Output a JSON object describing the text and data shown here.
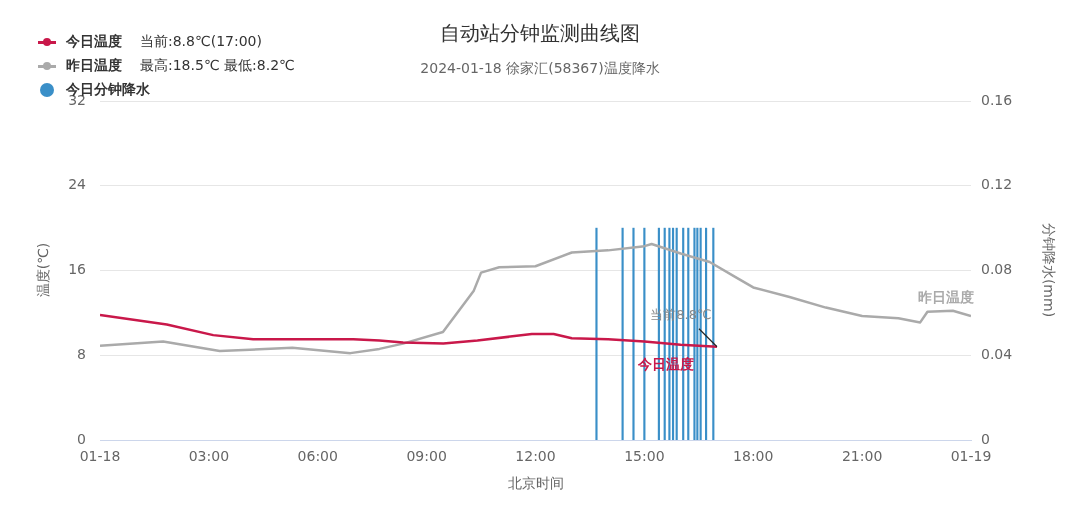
{
  "chart_data": {
    "type": "line",
    "title": "自动站分钟监测曲线图",
    "subtitle": "2024-01-18 徐家汇(58367)温度降水",
    "xlabel": "北京时间",
    "ylabel": "温度(℃)",
    "y2label": "分钟降水(mm)",
    "xlim": [
      0,
      24
    ],
    "xticks": [
      {
        "value": 0,
        "label": "01-18"
      },
      {
        "value": 3,
        "label": "03:00"
      },
      {
        "value": 6,
        "label": "06:00"
      },
      {
        "value": 9,
        "label": "09:00"
      },
      {
        "value": 12,
        "label": "12:00"
      },
      {
        "value": 15,
        "label": "15:00"
      },
      {
        "value": 18,
        "label": "18:00"
      },
      {
        "value": 21,
        "label": "21:00"
      },
      {
        "value": 24,
        "label": "01-19"
      }
    ],
    "ylim": [
      0,
      32
    ],
    "yticks": [
      0,
      8,
      16,
      24,
      32
    ],
    "y2lim": [
      0,
      0.16
    ],
    "y2ticks": [
      0,
      0.04,
      0.08,
      0.12,
      0.16
    ],
    "grid": "y",
    "legend": "top left",
    "annotations": [
      "当前:8.8℃(17:00)",
      "最高:18.5℃ 最低:8.2℃",
      {
        "text": "当前8.8℃",
        "x": 17,
        "y": 8.8
      }
    ],
    "series": [
      {
        "name": "今日温度",
        "color": "#c9184a",
        "x": [
          0,
          1.84,
          3.12,
          4.22,
          6.98,
          7.7,
          8.35,
          9.46,
          10.4,
          11.9,
          12.5,
          13,
          14,
          15,
          16,
          17
        ],
        "values": [
          11.8,
          10.9,
          9.9,
          9.5,
          9.5,
          9.4,
          9.2,
          9.1,
          9.4,
          10,
          10,
          9.6,
          9.5,
          9.3,
          9,
          8.8
        ]
      },
      {
        "name": "昨日温度",
        "color": "#aaaaaa",
        "x": [
          0,
          1.74,
          3.3,
          5.3,
          6.9,
          7.7,
          8.35,
          9.45,
          10.3,
          10.5,
          11,
          12,
          13,
          14,
          15,
          15.2,
          16,
          16.8,
          17.5,
          18,
          19,
          20,
          21,
          22,
          22.6,
          22.8,
          23.5,
          24
        ],
        "values": [
          8.9,
          9.3,
          8.4,
          8.7,
          8.2,
          8.6,
          9.1,
          10.2,
          14.1,
          15.8,
          16.3,
          16.4,
          17.7,
          17.9,
          18.3,
          18.5,
          17.6,
          16.8,
          15.4,
          14.4,
          13.5,
          12.5,
          11.7,
          11.5,
          11.1,
          12.1,
          12.2,
          11.7
        ]
      },
      {
        "name": "今日分钟降水",
        "type": "bar",
        "axis": "y2",
        "color": "#3a8fc8",
        "x": [
          13.68,
          14.4,
          14.7,
          15,
          15.4,
          15.56,
          15.69,
          15.79,
          15.89,
          16.07,
          16.21,
          16.38,
          16.46,
          16.55,
          16.7,
          16.9
        ],
        "values": [
          0.1,
          0.1,
          0.1,
          0.1,
          0.1,
          0.1,
          0.1,
          0.1,
          0.1,
          0.1,
          0.1,
          0.1,
          0.1,
          0.1,
          0.1,
          0.1
        ]
      }
    ]
  }
}
